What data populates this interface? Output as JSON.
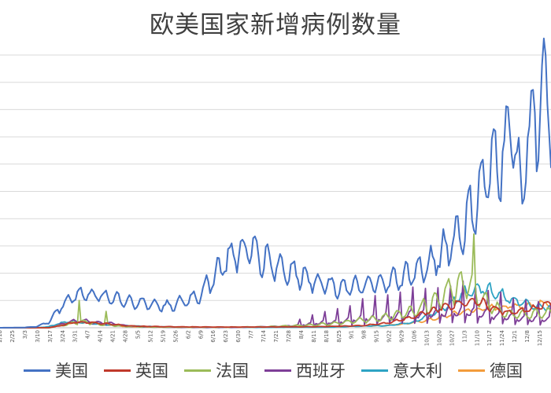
{
  "chart_data": {
    "type": "line",
    "title": "欧美国家新增病例数量",
    "xlabel": "",
    "ylabel": "",
    "x_tick_labels": [
      "2/18",
      "2/25",
      "3/3",
      "3/10",
      "3/17",
      "3/24",
      "3/31",
      "4/7",
      "4/14",
      "4/21",
      "4/28",
      "5/5",
      "5/12",
      "5/19",
      "5/26",
      "6/2",
      "6/9",
      "6/16",
      "6/23",
      "6/30",
      "7/7",
      "7/14",
      "7/21",
      "7/28",
      "8/4",
      "8/11",
      "8/18",
      "8/25",
      "9/1",
      "9/8",
      "9/15",
      "9/22",
      "9/29",
      "10/6",
      "10/13",
      "10/20",
      "10/27",
      "11/3",
      "11/10",
      "11/17",
      "11/24",
      "12/1",
      "12/8",
      "12/15"
    ],
    "ylim": [
      0,
      250000
    ],
    "gridlines": [
      0,
      25000,
      50000,
      75000,
      100000,
      125000,
      150000,
      175000,
      200000,
      225000,
      250000
    ],
    "legend_position": "bottom",
    "series": [
      {
        "name": "美国",
        "color": "#4472C4",
        "keypoints": [
          [
            0,
            0
          ],
          [
            14,
            200
          ],
          [
            21,
            1000
          ],
          [
            28,
            5000
          ],
          [
            35,
            20000
          ],
          [
            42,
            30000
          ],
          [
            49,
            31000
          ],
          [
            56,
            29000
          ],
          [
            63,
            28000
          ],
          [
            70,
            25000
          ],
          [
            77,
            23000
          ],
          [
            84,
            22000
          ],
          [
            91,
            20000
          ],
          [
            98,
            21000
          ],
          [
            105,
            25000
          ],
          [
            112,
            30000
          ],
          [
            119,
            45000
          ],
          [
            126,
            60000
          ],
          [
            133,
            68000
          ],
          [
            140,
            72000
          ],
          [
            147,
            65000
          ],
          [
            154,
            58000
          ],
          [
            161,
            52000
          ],
          [
            168,
            48000
          ],
          [
            175,
            45000
          ],
          [
            182,
            40000
          ],
          [
            189,
            38000
          ],
          [
            196,
            37000
          ],
          [
            203,
            37000
          ],
          [
            210,
            40000
          ],
          [
            217,
            42000
          ],
          [
            224,
            45000
          ],
          [
            231,
            50000
          ],
          [
            238,
            55000
          ],
          [
            245,
            65000
          ],
          [
            252,
            78000
          ],
          [
            259,
            90000
          ],
          [
            266,
            115000
          ],
          [
            273,
            140000
          ],
          [
            280,
            160000
          ],
          [
            287,
            180000
          ],
          [
            292,
            120000
          ],
          [
            294,
            170000
          ],
          [
            301,
            200000
          ],
          [
            308,
            210000
          ],
          [
            312,
            235000
          ],
          [
            315,
            220000
          ],
          [
            318,
            190000
          ]
        ],
        "weekly_amp": 0.22
      },
      {
        "name": "英国",
        "color": "#C0392B",
        "keypoints": [
          [
            0,
            0
          ],
          [
            28,
            0
          ],
          [
            35,
            2000
          ],
          [
            42,
            5000
          ],
          [
            49,
            5000
          ],
          [
            56,
            4000
          ],
          [
            63,
            3500
          ],
          [
            70,
            2000
          ],
          [
            77,
            1500
          ],
          [
            91,
            1000
          ],
          [
            119,
            700
          ],
          [
            147,
            700
          ],
          [
            182,
            1000
          ],
          [
            203,
            2000
          ],
          [
            217,
            4500
          ],
          [
            231,
            10000
          ],
          [
            245,
            18000
          ],
          [
            259,
            23000
          ],
          [
            266,
            25000
          ],
          [
            273,
            20000
          ],
          [
            280,
            15000
          ],
          [
            287,
            14000
          ],
          [
            294,
            16000
          ],
          [
            301,
            19000
          ],
          [
            308,
            22000
          ],
          [
            318,
            25000
          ]
        ],
        "weekly_amp": 0.15
      },
      {
        "name": "法国",
        "color": "#9BBB59",
        "keypoints": [
          [
            0,
            0
          ],
          [
            28,
            0
          ],
          [
            35,
            2000
          ],
          [
            42,
            4500
          ],
          [
            47,
            5000
          ],
          [
            49,
            6000
          ],
          [
            56,
            3000
          ],
          [
            63,
            2500
          ],
          [
            70,
            1500
          ],
          [
            84,
            800
          ],
          [
            91,
            600
          ],
          [
            105,
            500
          ],
          [
            126,
            500
          ],
          [
            147,
            800
          ],
          [
            168,
            2000
          ],
          [
            189,
            4000
          ],
          [
            203,
            7000
          ],
          [
            217,
            10000
          ],
          [
            231,
            15000
          ],
          [
            238,
            20000
          ],
          [
            245,
            26000
          ],
          [
            252,
            35000
          ],
          [
            259,
            40000
          ],
          [
            262,
            42000
          ],
          [
            266,
            30000
          ],
          [
            273,
            22000
          ],
          [
            280,
            15000
          ],
          [
            287,
            12000
          ],
          [
            294,
            12000
          ],
          [
            301,
            13000
          ],
          [
            308,
            14000
          ],
          [
            318,
            15000
          ]
        ],
        "weekly_amp": 0.35,
        "spikes": [
          [
            45,
            25000
          ],
          [
            60,
            15000
          ],
          [
            265,
            86000
          ]
        ]
      },
      {
        "name": "西班牙",
        "color": "#7E3F98",
        "keypoints": [
          [
            0,
            0
          ],
          [
            28,
            0
          ],
          [
            35,
            3000
          ],
          [
            42,
            6000
          ],
          [
            49,
            6000
          ],
          [
            56,
            4500
          ],
          [
            63,
            4000
          ],
          [
            70,
            2000
          ],
          [
            77,
            1000
          ],
          [
            98,
            300
          ],
          [
            133,
            300
          ],
          [
            161,
            1500
          ],
          [
            175,
            4000
          ],
          [
            189,
            6000
          ],
          [
            203,
            9000
          ],
          [
            217,
            11000
          ],
          [
            231,
            13000
          ],
          [
            245,
            14000
          ],
          [
            259,
            15000
          ],
          [
            273,
            13000
          ],
          [
            287,
            10000
          ],
          [
            301,
            8000
          ],
          [
            318,
            8000
          ]
        ],
        "weekly_amp": 0.3,
        "spike_every": 7,
        "spike_from": 165,
        "spike_mult": 2.2
      },
      {
        "name": "意大利",
        "color": "#2EA3C4",
        "keypoints": [
          [
            0,
            0
          ],
          [
            21,
            0
          ],
          [
            28,
            1000
          ],
          [
            35,
            4500
          ],
          [
            42,
            6000
          ],
          [
            49,
            4500
          ],
          [
            56,
            3500
          ],
          [
            63,
            2500
          ],
          [
            77,
            1500
          ],
          [
            91,
            800
          ],
          [
            112,
            300
          ],
          [
            147,
            300
          ],
          [
            182,
            500
          ],
          [
            203,
            1500
          ],
          [
            217,
            2000
          ],
          [
            231,
            5000
          ],
          [
            245,
            15000
          ],
          [
            252,
            22000
          ],
          [
            259,
            32000
          ],
          [
            266,
            36000
          ],
          [
            273,
            35000
          ],
          [
            280,
            30000
          ],
          [
            287,
            25000
          ],
          [
            294,
            22000
          ],
          [
            301,
            20000
          ],
          [
            318,
            17000
          ]
        ],
        "weekly_amp": 0.15
      },
      {
        "name": "德国",
        "color": "#F39C3C",
        "keypoints": [
          [
            0,
            0
          ],
          [
            28,
            0
          ],
          [
            35,
            3000
          ],
          [
            42,
            5000
          ],
          [
            49,
            5000
          ],
          [
            56,
            3500
          ],
          [
            63,
            2500
          ],
          [
            70,
            1200
          ],
          [
            84,
            700
          ],
          [
            112,
            400
          ],
          [
            147,
            500
          ],
          [
            175,
            900
          ],
          [
            196,
            1500
          ],
          [
            217,
            2000
          ],
          [
            231,
            4500
          ],
          [
            245,
            9000
          ],
          [
            259,
            15000
          ],
          [
            273,
            18000
          ],
          [
            287,
            20000
          ],
          [
            301,
            21000
          ],
          [
            308,
            24000
          ],
          [
            318,
            28000
          ]
        ],
        "weekly_amp": 0.12
      }
    ]
  }
}
